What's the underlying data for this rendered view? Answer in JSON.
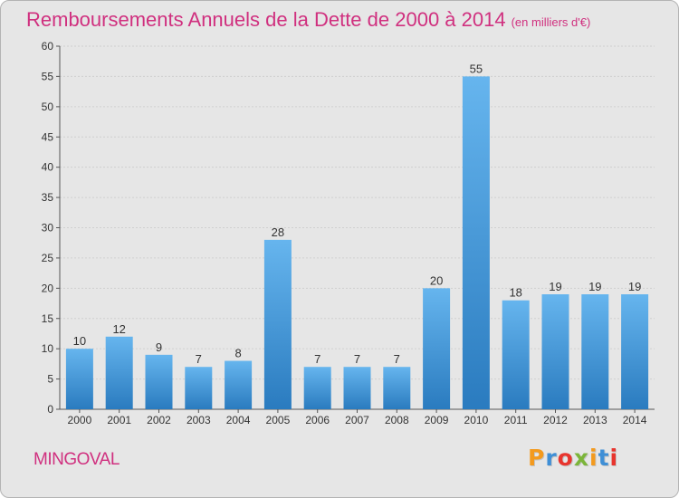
{
  "header": {
    "title": "Remboursements Annuels de la Dette de 2000 à 2014",
    "subtitle": "(en milliers d'€)"
  },
  "footer": {
    "commune": "MINGOVAL",
    "brand": "Proxiti"
  },
  "colors": {
    "title": "#d0307f",
    "bar_light": "#66b5ee",
    "bar_dark": "#2a7bbf",
    "background": "#e6e6e6",
    "grid": "#cfcfcf"
  },
  "chart_data": {
    "type": "bar",
    "title": "Remboursements Annuels de la Dette de 2000 à 2014",
    "subtitle": "(en milliers d'€)",
    "xlabel": "",
    "ylabel": "",
    "categories": [
      "2000",
      "2001",
      "2002",
      "2003",
      "2004",
      "2005",
      "2006",
      "2007",
      "2008",
      "2009",
      "2010",
      "2011",
      "2012",
      "2013",
      "2014"
    ],
    "values": [
      10,
      12,
      9,
      7,
      8,
      28,
      7,
      7,
      7,
      20,
      55,
      18,
      19,
      19,
      19
    ],
    "ylim": [
      0,
      60
    ],
    "yticks": [
      0,
      5,
      10,
      15,
      20,
      25,
      30,
      35,
      40,
      45,
      50,
      55,
      60
    ],
    "grid": true,
    "data_labels": true
  }
}
